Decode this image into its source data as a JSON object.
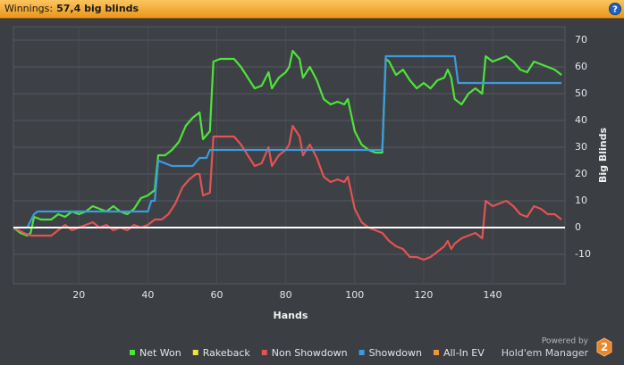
{
  "header": {
    "label": "Winnings:",
    "value": "57,4 big blinds",
    "help_icon": "?"
  },
  "branding": {
    "powered_by": "Powered by",
    "product": "Hold'em Manager",
    "logo": "2"
  },
  "chart_data": {
    "type": "line",
    "x_label": "Hands",
    "y_label": "Big Blinds",
    "xlim": [
      1,
      161
    ],
    "ylim": [
      -21,
      75
    ],
    "xticks": [
      20,
      40,
      60,
      80,
      100,
      120,
      140
    ],
    "yticks": [
      -10,
      0,
      10,
      20,
      30,
      40,
      50,
      60,
      70
    ],
    "grid": true,
    "legend": "bottom",
    "series": [
      {
        "name": "Net Won",
        "color": "#4ee43a",
        "x": [
          1,
          3,
          5,
          6,
          7,
          9,
          12,
          14,
          16,
          18,
          20,
          22,
          24,
          26,
          28,
          30,
          32,
          34,
          36,
          38,
          40,
          42,
          43,
          45,
          47,
          49,
          51,
          53,
          55,
          56,
          58,
          59,
          61,
          63,
          65,
          67,
          69,
          71,
          73,
          75,
          76,
          78,
          80,
          81,
          82,
          84,
          85,
          87,
          89,
          91,
          93,
          95,
          97,
          98,
          100,
          102,
          104,
          106,
          108,
          109,
          110,
          112,
          114,
          116,
          118,
          120,
          122,
          124,
          126,
          127,
          128,
          129,
          131,
          133,
          135,
          137,
          138,
          140,
          142,
          144,
          146,
          148,
          150,
          152,
          154,
          156,
          158,
          160
        ],
        "values": [
          0,
          -2,
          -3,
          -2,
          4,
          3,
          3,
          5,
          4,
          6,
          5,
          6,
          8,
          7,
          6,
          8,
          6,
          5,
          7,
          11,
          12,
          14,
          27,
          27,
          29,
          32,
          38,
          41,
          43,
          33,
          36,
          62,
          63,
          63,
          63,
          60,
          56,
          52,
          53,
          58,
          52,
          56,
          58,
          60,
          66,
          63,
          56,
          60,
          55,
          48,
          46,
          47,
          46,
          48,
          36,
          31,
          29,
          28,
          28,
          63,
          62,
          57,
          59,
          55,
          52,
          54,
          52,
          55,
          56,
          59,
          56,
          48,
          46,
          50,
          52,
          50,
          64,
          62,
          63,
          64,
          62,
          59,
          58,
          62,
          61,
          60,
          59,
          57
        ]
      },
      {
        "name": "Rakeback",
        "color": "#f2e43a",
        "x": [],
        "values": []
      },
      {
        "name": "Non Showdown",
        "color": "#e25353",
        "x": [
          1,
          4,
          6,
          8,
          10,
          12,
          14,
          16,
          18,
          20,
          22,
          24,
          26,
          28,
          30,
          32,
          34,
          36,
          38,
          40,
          42,
          44,
          46,
          48,
          50,
          52,
          54,
          55,
          56,
          58,
          59,
          61,
          63,
          65,
          67,
          69,
          71,
          73,
          75,
          76,
          78,
          80,
          81,
          82,
          84,
          85,
          87,
          89,
          91,
          93,
          95,
          97,
          98,
          100,
          102,
          104,
          106,
          108,
          110,
          112,
          114,
          116,
          118,
          120,
          122,
          124,
          126,
          127,
          128,
          129,
          131,
          133,
          135,
          137,
          138,
          140,
          142,
          144,
          146,
          148,
          150,
          152,
          154,
          156,
          158,
          160
        ],
        "values": [
          0,
          -2,
          -3,
          -3,
          -3,
          -3,
          -1,
          1,
          -1,
          0,
          1,
          2,
          0,
          1,
          -1,
          0,
          -1,
          1,
          0,
          1,
          3,
          3,
          5,
          9,
          15,
          18,
          20,
          20,
          12,
          13,
          34,
          34,
          34,
          34,
          31,
          27,
          23,
          24,
          30,
          23,
          27,
          29,
          31,
          38,
          34,
          27,
          31,
          26,
          19,
          17,
          18,
          17,
          19,
          7,
          2,
          0,
          -1,
          -2,
          -5,
          -7,
          -8,
          -11,
          -11,
          -12,
          -11,
          -9,
          -7,
          -5,
          -8,
          -6,
          -4,
          -3,
          -2,
          -4,
          10,
          8,
          9,
          10,
          8,
          5,
          4,
          8,
          7,
          5,
          5,
          3
        ]
      },
      {
        "name": "Showdown",
        "color": "#3c9be0",
        "x": [
          1,
          5,
          7,
          8,
          40,
          41,
          42,
          43,
          45,
          47,
          53,
          55,
          57,
          58,
          108,
          109,
          129,
          130,
          160
        ],
        "values": [
          0,
          0,
          5,
          6,
          6,
          10,
          10,
          25,
          24,
          23,
          23,
          26,
          26,
          29,
          29,
          64,
          64,
          54,
          54
        ]
      },
      {
        "name": "All-In EV",
        "color": "#f0943a",
        "x": [],
        "values": []
      }
    ]
  }
}
